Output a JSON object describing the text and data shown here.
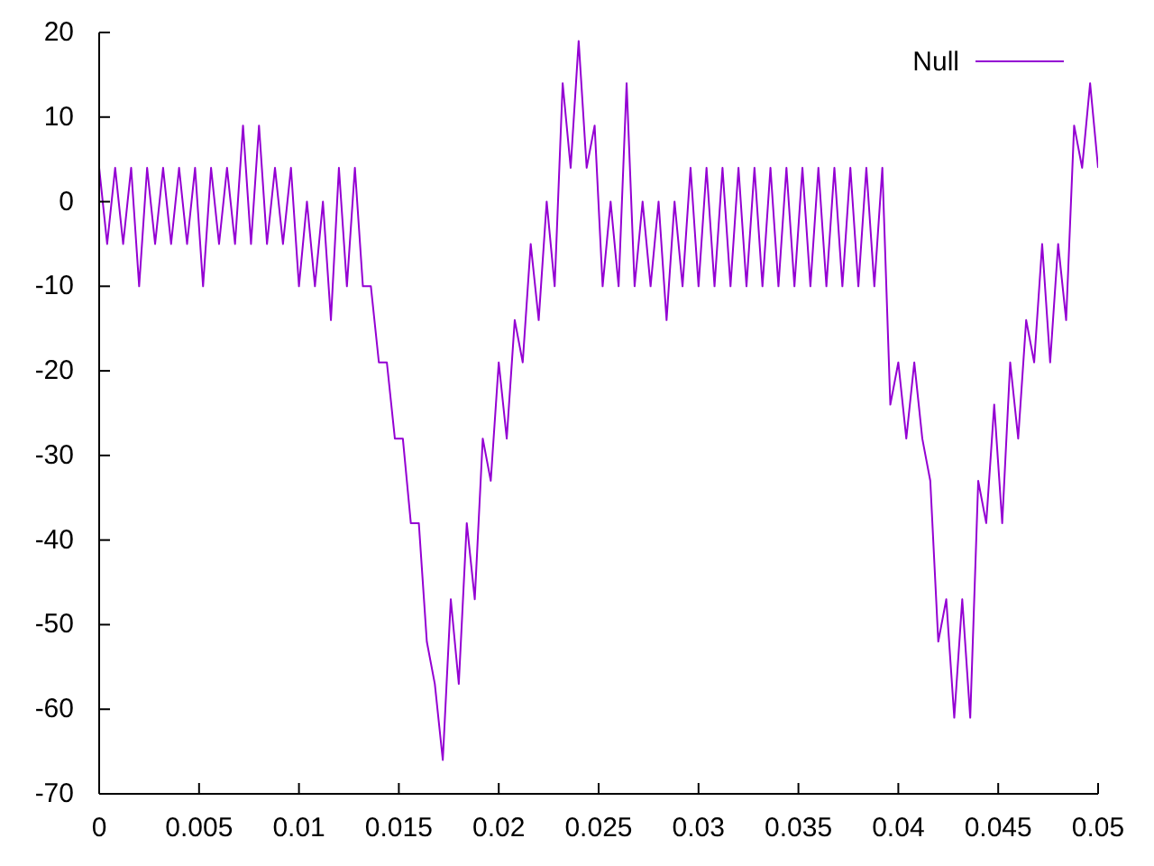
{
  "chart_data": {
    "type": "line",
    "x": [
      0,
      0.0004,
      0.0008,
      0.0012,
      0.0016,
      0.002,
      0.0024,
      0.0028,
      0.0032,
      0.0036,
      0.004,
      0.0044,
      0.0048,
      0.0052,
      0.0056,
      0.006,
      0.0064,
      0.0068,
      0.0072,
      0.0076,
      0.008,
      0.0084,
      0.0088,
      0.0092,
      0.0096,
      0.01,
      0.0104,
      0.0108,
      0.0112,
      0.0116,
      0.012,
      0.0124,
      0.0128,
      0.0132,
      0.0136,
      0.014,
      0.0144,
      0.0148,
      0.0152,
      0.0156,
      0.016,
      0.0164,
      0.0168,
      0.0172,
      0.0176,
      0.018,
      0.0184,
      0.0188,
      0.0192,
      0.0196,
      0.02,
      0.0204,
      0.0208,
      0.0212,
      0.0216,
      0.022,
      0.0224,
      0.0228,
      0.0232,
      0.0236,
      0.024,
      0.0244,
      0.0248,
      0.0252,
      0.0256,
      0.026,
      0.0264,
      0.0268,
      0.0272,
      0.0276,
      0.028,
      0.0284,
      0.0288,
      0.0292,
      0.0296,
      0.03,
      0.0304,
      0.0308,
      0.0312,
      0.0316,
      0.032,
      0.0324,
      0.0328,
      0.0332,
      0.0336,
      0.034,
      0.0344,
      0.0348,
      0.0352,
      0.0356,
      0.036,
      0.0364,
      0.0368,
      0.0372,
      0.0376,
      0.038,
      0.0384,
      0.0388,
      0.0392,
      0.0396,
      0.04,
      0.0404,
      0.0408,
      0.0412,
      0.0416,
      0.042,
      0.0424,
      0.0428,
      0.0432,
      0.0436,
      0.044,
      0.0444,
      0.0448,
      0.0452,
      0.0456,
      0.046,
      0.0464,
      0.0468,
      0.0472,
      0.0476,
      0.048,
      0.0484,
      0.0488,
      0.0492,
      0.0496,
      0.05
    ],
    "series": [
      {
        "name": "Null",
        "color": "#9400d3",
        "values": [
          4,
          -5,
          4,
          -5,
          4,
          -10,
          4,
          -5,
          4,
          -5,
          4,
          -5,
          4,
          -10,
          4,
          -5,
          4,
          -5,
          9,
          -5,
          9,
          -5,
          4,
          -5,
          4,
          -10,
          0,
          -10,
          0,
          -14,
          4,
          -10,
          4,
          -10,
          -10,
          -19,
          -19,
          -28,
          -28,
          -38,
          -38,
          -52,
          -57,
          -66,
          -47,
          -57,
          -38,
          -47,
          -28,
          -33,
          -19,
          -28,
          -14,
          -19,
          -5,
          -14,
          0,
          -10,
          14,
          4,
          19,
          4,
          9,
          -10,
          0,
          -10,
          14,
          -10,
          0,
          -10,
          0,
          -14,
          0,
          -10,
          4,
          -10,
          4,
          -10,
          4,
          -10,
          4,
          -10,
          4,
          -10,
          4,
          -10,
          4,
          -10,
          4,
          -10,
          4,
          -10,
          4,
          -10,
          4,
          -10,
          4,
          -10,
          4,
          -24,
          -19,
          -28,
          -19,
          -28,
          -33,
          -52,
          -47,
          -61,
          -47,
          -61,
          -33,
          -38,
          -24,
          -38,
          -19,
          -28,
          -14,
          -19,
          -5,
          -19,
          -5,
          -14,
          9,
          4,
          14,
          4
        ]
      }
    ],
    "xlim": [
      0,
      0.05
    ],
    "ylim": [
      -70,
      20
    ],
    "xticks": [
      0,
      0.005,
      0.01,
      0.015,
      0.02,
      0.025,
      0.03,
      0.035,
      0.04,
      0.045,
      0.05
    ],
    "yticks": [
      -70,
      -60,
      -50,
      -40,
      -30,
      -20,
      -10,
      0,
      10,
      20
    ],
    "legend": "top right"
  }
}
